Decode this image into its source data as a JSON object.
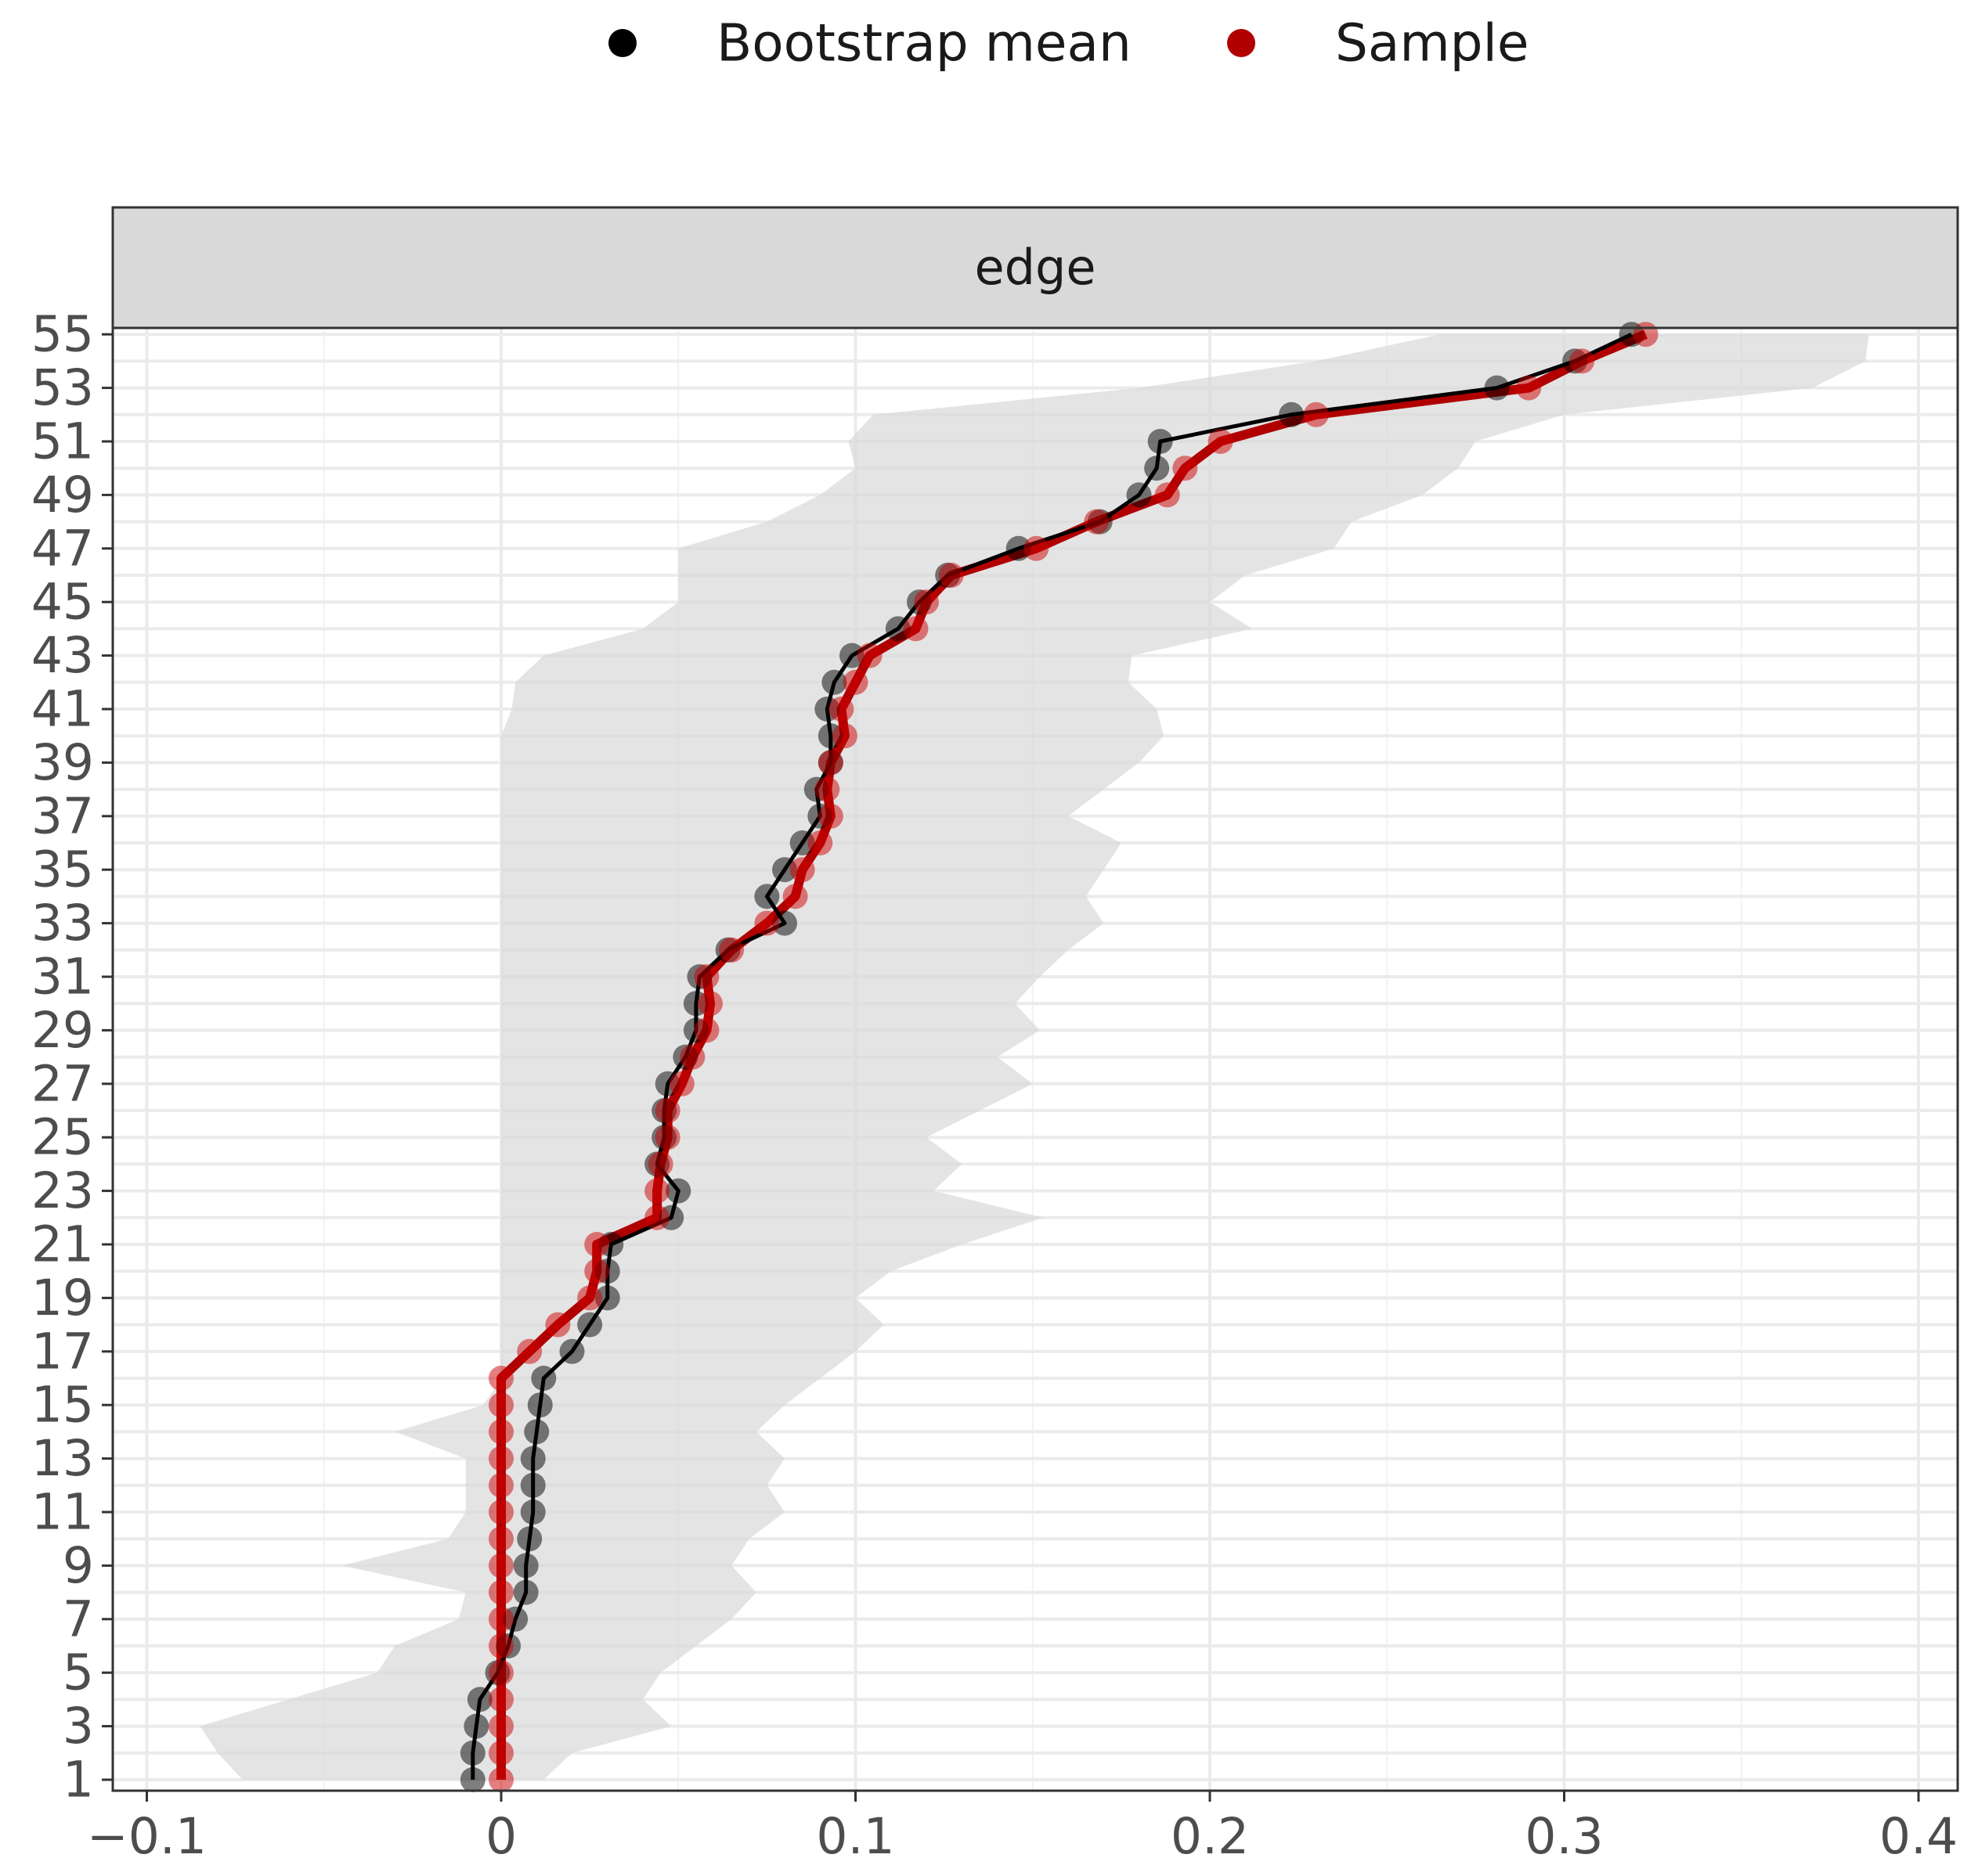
{
  "chart_data": {
    "type": "line",
    "facet_label": "edge",
    "legend": {
      "position": "top",
      "entries": [
        {
          "name": "Bootstrap mean",
          "color": "#000000"
        },
        {
          "name": "Sample",
          "color": "#b00000"
        }
      ]
    },
    "x_axis": {
      "range": [
        -0.11,
        0.41
      ],
      "ticks": [
        -0.1,
        0,
        0.1,
        0.2,
        0.3,
        0.4
      ],
      "tick_labels": [
        "−0.1",
        "0",
        "0.1",
        "0.2",
        "0.3",
        "0.4"
      ],
      "minor_ticks": [
        -0.05,
        0.05,
        0.15,
        0.25,
        0.35
      ]
    },
    "y_axis": {
      "range": [
        1,
        55
      ],
      "tick_labels": [
        "1",
        "3",
        "5",
        "7",
        "9",
        "11",
        "13",
        "15",
        "17",
        "19",
        "21",
        "23",
        "25",
        "27",
        "29",
        "31",
        "33",
        "35",
        "37",
        "39",
        "41",
        "43",
        "45",
        "47",
        "49",
        "51",
        "53",
        "55"
      ]
    },
    "grid": true,
    "ci_band_color": "#d9d9d9",
    "ci_lower": [
      -0.073,
      -0.08,
      -0.085,
      -0.06,
      -0.035,
      -0.03,
      -0.012,
      -0.01,
      -0.045,
      -0.015,
      -0.01,
      -0.01,
      -0.01,
      -0.03,
      -0.005,
      0.0,
      0.0,
      0.0,
      0.0,
      0.0,
      0.0,
      0.0,
      0.0,
      0.0,
      0.0,
      0.0,
      0.0,
      0.0,
      0.0,
      0.0,
      0.0,
      0.0,
      0.0,
      0.0,
      0.0,
      0.0,
      0.0,
      0.0,
      0.0,
      0.0,
      0.003,
      0.004,
      0.012,
      0.04,
      0.05,
      0.05,
      0.05,
      0.075,
      0.09,
      0.1,
      0.098,
      0.105,
      0.18,
      0.23,
      0.265
    ],
    "ci_upper": [
      0.012,
      0.02,
      0.048,
      0.04,
      0.045,
      0.055,
      0.065,
      0.072,
      0.065,
      0.07,
      0.08,
      0.075,
      0.08,
      0.072,
      0.08,
      0.09,
      0.1,
      0.108,
      0.1,
      0.11,
      0.13,
      0.153,
      0.122,
      0.13,
      0.12,
      0.135,
      0.15,
      0.14,
      0.152,
      0.145,
      0.152,
      0.16,
      0.17,
      0.165,
      0.17,
      0.175,
      0.16,
      0.17,
      0.18,
      0.187,
      0.185,
      0.177,
      0.178,
      0.212,
      0.2,
      0.21,
      0.235,
      0.24,
      0.26,
      0.27,
      0.275,
      0.3,
      0.37,
      0.385,
      0.386
    ],
    "series": [
      {
        "name": "Bootstrap mean",
        "x": [
          1,
          2,
          3,
          4,
          5,
          6,
          7,
          8,
          9,
          10,
          11,
          12,
          13,
          14,
          15,
          16,
          17,
          18,
          19,
          20,
          21,
          22,
          23,
          24,
          25,
          26,
          27,
          28,
          29,
          30,
          31,
          32,
          33,
          34,
          35,
          36,
          37,
          38,
          39,
          40,
          41,
          42,
          43,
          44,
          45,
          46,
          47,
          48,
          49,
          50,
          51,
          52,
          53,
          54,
          55
        ],
        "y": [
          -0.008,
          -0.008,
          -0.007,
          -0.006,
          -0.001,
          0.002,
          0.004,
          0.007,
          0.007,
          0.008,
          0.009,
          0.009,
          0.009,
          0.01,
          0.011,
          0.012,
          0.02,
          0.025,
          0.03,
          0.03,
          0.031,
          0.048,
          0.05,
          0.044,
          0.046,
          0.046,
          0.047,
          0.052,
          0.055,
          0.055,
          0.056,
          0.064,
          0.08,
          0.075,
          0.08,
          0.085,
          0.09,
          0.089,
          0.093,
          0.093,
          0.092,
          0.094,
          0.099,
          0.112,
          0.118,
          0.126,
          0.146,
          0.169,
          0.18,
          0.185,
          0.186,
          0.223,
          0.281,
          0.303,
          0.319
        ]
      },
      {
        "name": "Sample",
        "x": [
          1,
          2,
          3,
          4,
          5,
          6,
          7,
          8,
          9,
          10,
          11,
          12,
          13,
          14,
          15,
          16,
          17,
          18,
          19,
          20,
          21,
          22,
          23,
          24,
          25,
          26,
          27,
          28,
          29,
          30,
          31,
          32,
          33,
          34,
          35,
          36,
          37,
          38,
          39,
          40,
          41,
          42,
          43,
          44,
          45,
          46,
          47,
          48,
          49,
          50,
          51,
          52,
          53,
          54,
          55
        ],
        "y": [
          0,
          0,
          0,
          0,
          0,
          0,
          0,
          0,
          0,
          0,
          0,
          0,
          0,
          0,
          0,
          0,
          0.008,
          0.016,
          0.025,
          0.027,
          0.027,
          0.044,
          0.044,
          0.045,
          0.047,
          0.047,
          0.051,
          0.054,
          0.058,
          0.059,
          0.058,
          0.065,
          0.075,
          0.083,
          0.085,
          0.09,
          0.093,
          0.092,
          0.093,
          0.097,
          0.096,
          0.1,
          0.104,
          0.117,
          0.12,
          0.127,
          0.151,
          0.168,
          0.188,
          0.193,
          0.203,
          0.23,
          0.29,
          0.305,
          0.323
        ]
      }
    ]
  }
}
